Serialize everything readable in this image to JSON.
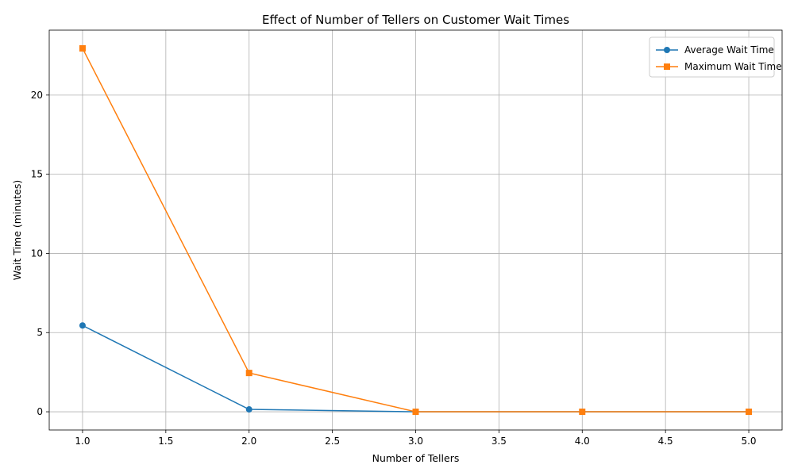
{
  "chart_data": {
    "type": "line",
    "title": "Effect of Number of Tellers on Customer Wait Times",
    "xlabel": "Number of Tellers",
    "ylabel": "Wait Time (minutes)",
    "x": [
      1,
      2,
      3,
      4,
      5
    ],
    "xlim": [
      0.8,
      5.2
    ],
    "ylim": [
      -1.15,
      24.1
    ],
    "xticks": [
      1.0,
      1.5,
      2.0,
      2.5,
      3.0,
      3.5,
      4.0,
      4.5,
      5.0
    ],
    "xtick_labels": [
      "1.0",
      "1.5",
      "2.0",
      "2.5",
      "3.0",
      "3.5",
      "4.0",
      "4.5",
      "5.0"
    ],
    "yticks": [
      0,
      5,
      10,
      15,
      20
    ],
    "ytick_labels": [
      "0",
      "5",
      "10",
      "15",
      "20"
    ],
    "grid": true,
    "legend_position": "top-right",
    "series": [
      {
        "name": "Average Wait Time",
        "values": [
          5.45,
          0.15,
          0.0,
          0.0,
          0.0
        ],
        "color": "#1f77b4",
        "marker": "circle"
      },
      {
        "name": "Maximum Wait Time",
        "values": [
          22.95,
          2.45,
          0.0,
          0.0,
          0.0
        ],
        "color": "#ff7f0e",
        "marker": "square"
      }
    ]
  }
}
